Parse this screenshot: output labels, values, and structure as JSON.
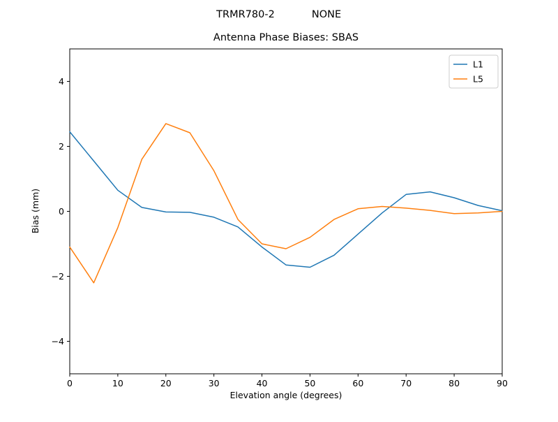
{
  "header": {
    "model": "TRMR780-2",
    "mode": "NONE"
  },
  "chart_data": {
    "type": "line",
    "suptitle": "TRMR780-2        NONE",
    "title": "Antenna Phase Biases: SBAS",
    "xlabel": "Elevation angle (degrees)",
    "ylabel": "Bias (mm)",
    "xlim": [
      0,
      90
    ],
    "ylim": [
      -5,
      5
    ],
    "xticks": [
      0,
      10,
      20,
      30,
      40,
      50,
      60,
      70,
      80,
      90
    ],
    "yticks": [
      -4,
      -2,
      0,
      2,
      4
    ],
    "grid": false,
    "legend": {
      "position": "upper right",
      "entries": [
        "L1",
        "L5"
      ]
    },
    "x": [
      0,
      5,
      10,
      15,
      20,
      25,
      30,
      35,
      40,
      45,
      50,
      55,
      60,
      65,
      70,
      75,
      80,
      85,
      90
    ],
    "series": [
      {
        "name": "L1",
        "color": "#1f77b4",
        "values": [
          2.45,
          1.55,
          0.65,
          0.12,
          -0.02,
          -0.03,
          -0.18,
          -0.48,
          -1.1,
          -1.65,
          -1.72,
          -1.35,
          -0.7,
          -0.05,
          0.52,
          0.6,
          0.42,
          0.18,
          0.02
        ]
      },
      {
        "name": "L5",
        "color": "#ff7f0e",
        "values": [
          -1.1,
          -2.2,
          -0.5,
          1.6,
          2.7,
          2.42,
          1.25,
          -0.25,
          -1.0,
          -1.15,
          -0.8,
          -0.25,
          0.08,
          0.15,
          0.1,
          0.03,
          -0.07,
          -0.05,
          0.0
        ]
      }
    ]
  }
}
